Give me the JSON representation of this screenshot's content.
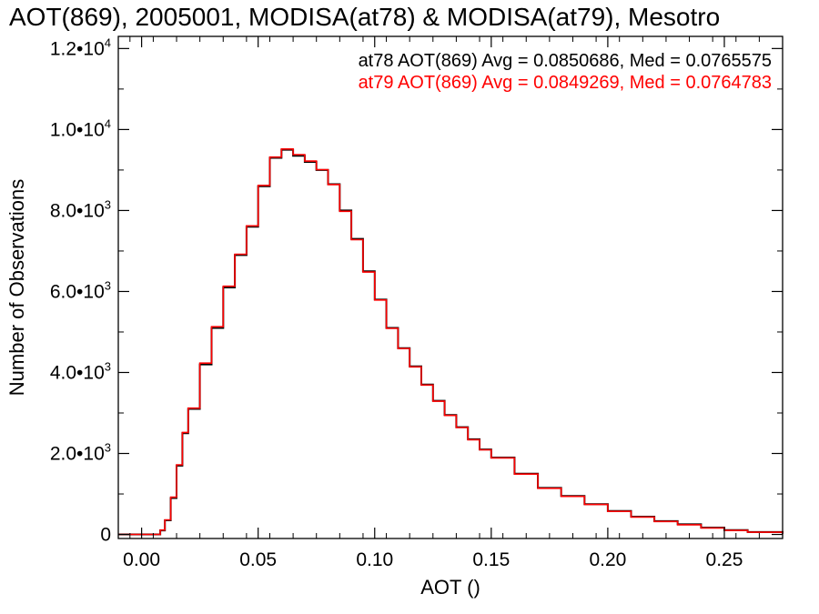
{
  "chart_data": {
    "type": "line",
    "step": true,
    "title": "AOT(869), 2005001, MODISA(at78) & MODISA(at79), Mesotro",
    "xlabel": "AOT ()",
    "ylabel": "Number of Observations",
    "xlim": [
      -0.01,
      0.275
    ],
    "ylim": [
      -100,
      12300
    ],
    "xticks": [
      0.0,
      0.05,
      0.1,
      0.15,
      0.2,
      0.25
    ],
    "xtick_labels": [
      "0.00",
      "0.05",
      "0.10",
      "0.15",
      "0.20",
      "0.25"
    ],
    "yticks": [
      0,
      2000,
      4000,
      6000,
      8000,
      10000,
      12000
    ],
    "ytick_labels": [
      {
        "mant": "0",
        "exp": ""
      },
      {
        "mant": "2.0•10",
        "exp": "3"
      },
      {
        "mant": "4.0•10",
        "exp": "3"
      },
      {
        "mant": "6.0•10",
        "exp": "3"
      },
      {
        "mant": "8.0•10",
        "exp": "3"
      },
      {
        "mant": "1.0•10",
        "exp": "4"
      },
      {
        "mant": "1.2•10",
        "exp": "4"
      }
    ],
    "grid": false,
    "annotations": [
      {
        "text": "at78 AOT(869) Avg = 0.0850686, Med = 0.0765575",
        "color": "#000000"
      },
      {
        "text": "at79 AOT(869) Avg = 0.0849269, Med = 0.0764783",
        "color": "#ff0000"
      }
    ],
    "series": [
      {
        "color": "#000000",
        "x": [
          -0.01,
          0.0,
          0.005,
          0.008,
          0.01,
          0.0125,
          0.015,
          0.0175,
          0.02,
          0.025,
          0.03,
          0.035,
          0.04,
          0.045,
          0.05,
          0.055,
          0.06,
          0.065,
          0.07,
          0.075,
          0.08,
          0.085,
          0.09,
          0.095,
          0.1,
          0.105,
          0.11,
          0.115,
          0.12,
          0.125,
          0.13,
          0.135,
          0.14,
          0.145,
          0.15,
          0.16,
          0.17,
          0.18,
          0.19,
          0.2,
          0.21,
          0.22,
          0.23,
          0.24,
          0.25,
          0.26,
          0.275
        ],
        "y": [
          0,
          0,
          0,
          100,
          350,
          900,
          1700,
          2500,
          3100,
          4200,
          5100,
          6100,
          6900,
          7600,
          8600,
          9300,
          9500,
          9350,
          9200,
          9000,
          8650,
          8000,
          7300,
          6500,
          5800,
          5100,
          4600,
          4150,
          3700,
          3300,
          2950,
          2650,
          2350,
          2100,
          1900,
          1500,
          1150,
          950,
          750,
          580,
          440,
          330,
          250,
          170,
          110,
          60,
          20
        ]
      },
      {
        "color": "#ff0000",
        "x": [
          -0.01,
          0.0,
          0.005,
          0.008,
          0.01,
          0.0125,
          0.015,
          0.0175,
          0.02,
          0.025,
          0.03,
          0.035,
          0.04,
          0.045,
          0.05,
          0.055,
          0.06,
          0.065,
          0.07,
          0.075,
          0.08,
          0.085,
          0.09,
          0.095,
          0.1,
          0.105,
          0.11,
          0.115,
          0.12,
          0.125,
          0.13,
          0.135,
          0.14,
          0.145,
          0.15,
          0.16,
          0.17,
          0.18,
          0.19,
          0.2,
          0.21,
          0.22,
          0.23,
          0.24,
          0.25,
          0.26,
          0.275
        ],
        "y": [
          0,
          0,
          0,
          110,
          360,
          920,
          1720,
          2520,
          3120,
          4230,
          5130,
          6130,
          6920,
          7620,
          8620,
          9320,
          9520,
          9380,
          9220,
          9010,
          8640,
          7980,
          7280,
          6480,
          5790,
          5090,
          4590,
          4140,
          3690,
          3290,
          2940,
          2640,
          2340,
          2090,
          1890,
          1490,
          1140,
          940,
          740,
          570,
          430,
          320,
          240,
          160,
          100,
          55,
          18
        ]
      }
    ]
  }
}
